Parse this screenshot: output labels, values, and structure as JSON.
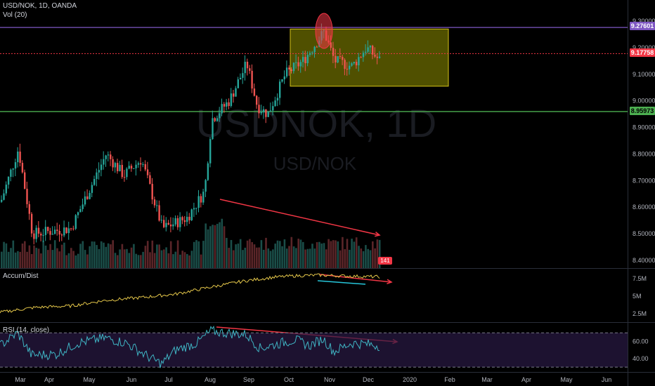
{
  "header": {
    "symbol_line": "USD/NOK, 1D, OANDA",
    "volume_label": "Vol (20)"
  },
  "watermark": {
    "main": "USDNOK, 1D",
    "sub": "USD/NOK"
  },
  "colors": {
    "up": "#26a69a",
    "down": "#ef5350",
    "purple_line": "#7e57c2",
    "green_line": "#4caf50",
    "red_line": "#f23645",
    "box_fill": "#6b6b00",
    "box_border": "#d4c117",
    "adl": "#e6c84a",
    "rsi": "#3fb5c4",
    "arrow": "#f23645",
    "teal_trend": "#26c6da"
  },
  "chart_data": [
    {
      "type": "candlestick",
      "title": "USD/NOK, 1D, OANDA",
      "x_ticks": [
        "Mar",
        "Apr",
        "May",
        "Jun",
        "Jul",
        "Aug",
        "Sep",
        "Oct",
        "Nov",
        "Dec",
        "2020",
        "Feb",
        "Mar",
        "Apr",
        "May",
        "Jun"
      ],
      "y_ticks": [
        "9.30000",
        "9.20000",
        "9.10000",
        "9.00000",
        "8.90000",
        "8.80000",
        "8.70000",
        "8.60000",
        "8.50000",
        "8.40000"
      ],
      "ylim": [
        8.38,
        9.33
      ],
      "keypoints": [
        [
          0,
          8.62
        ],
        [
          25,
          8.82
        ],
        [
          45,
          8.5
        ],
        [
          100,
          8.52
        ],
        [
          150,
          8.8
        ],
        [
          175,
          8.72
        ],
        [
          200,
          8.78
        ],
        [
          230,
          8.52
        ],
        [
          265,
          8.56
        ],
        [
          290,
          8.66
        ],
        [
          300,
          8.93
        ],
        [
          325,
          9.0
        ],
        [
          350,
          9.14
        ],
        [
          365,
          8.98
        ],
        [
          380,
          8.95
        ],
        [
          405,
          9.1
        ],
        [
          430,
          9.15
        ],
        [
          460,
          9.26
        ],
        [
          475,
          9.15
        ],
        [
          500,
          9.13
        ],
        [
          520,
          9.2
        ],
        [
          540,
          9.15
        ]
      ],
      "levels": [
        {
          "label": "9.27601",
          "value": 9.27601
        },
        {
          "label": "9.17758",
          "value": 9.17758
        },
        {
          "label": "8.95973",
          "value": 8.95973
        }
      ],
      "range_box": {
        "x_from": 413,
        "x_to": 638,
        "y_from": 9.055,
        "y_to": 9.27
      },
      "volume_last": "141"
    },
    {
      "type": "line",
      "title": "Accum/Dist",
      "y_ticks": [
        "7.5M",
        "5M",
        "2.5M"
      ],
      "ylim": [
        1.5,
        8.7
      ],
      "keypoints": [
        [
          0,
          2.7
        ],
        [
          50,
          3.4
        ],
        [
          100,
          3.6
        ],
        [
          150,
          4.4
        ],
        [
          200,
          4.8
        ],
        [
          250,
          5.3
        ],
        [
          300,
          6.3
        ],
        [
          350,
          7.2
        ],
        [
          390,
          7.7
        ],
        [
          420,
          7.9
        ],
        [
          455,
          8.0
        ],
        [
          480,
          7.9
        ],
        [
          520,
          7.8
        ],
        [
          540,
          7.75
        ]
      ]
    },
    {
      "type": "line",
      "title": "RSI (14, close)",
      "y_ticks": [
        "60.00",
        "40.00"
      ],
      "ylim": [
        26,
        80
      ],
      "bands": [
        70,
        30
      ],
      "keypoints": [
        [
          0,
          55
        ],
        [
          25,
          70
        ],
        [
          45,
          44
        ],
        [
          80,
          45
        ],
        [
          110,
          58
        ],
        [
          150,
          64
        ],
        [
          180,
          58
        ],
        [
          215,
          40
        ],
        [
          230,
          34
        ],
        [
          250,
          50
        ],
        [
          280,
          58
        ],
        [
          300,
          72
        ],
        [
          320,
          70
        ],
        [
          350,
          68
        ],
        [
          370,
          52
        ],
        [
          400,
          58
        ],
        [
          420,
          62
        ],
        [
          440,
          55
        ],
        [
          460,
          63
        ],
        [
          475,
          48
        ],
        [
          500,
          58
        ],
        [
          520,
          57
        ],
        [
          540,
          55
        ]
      ]
    }
  ]
}
